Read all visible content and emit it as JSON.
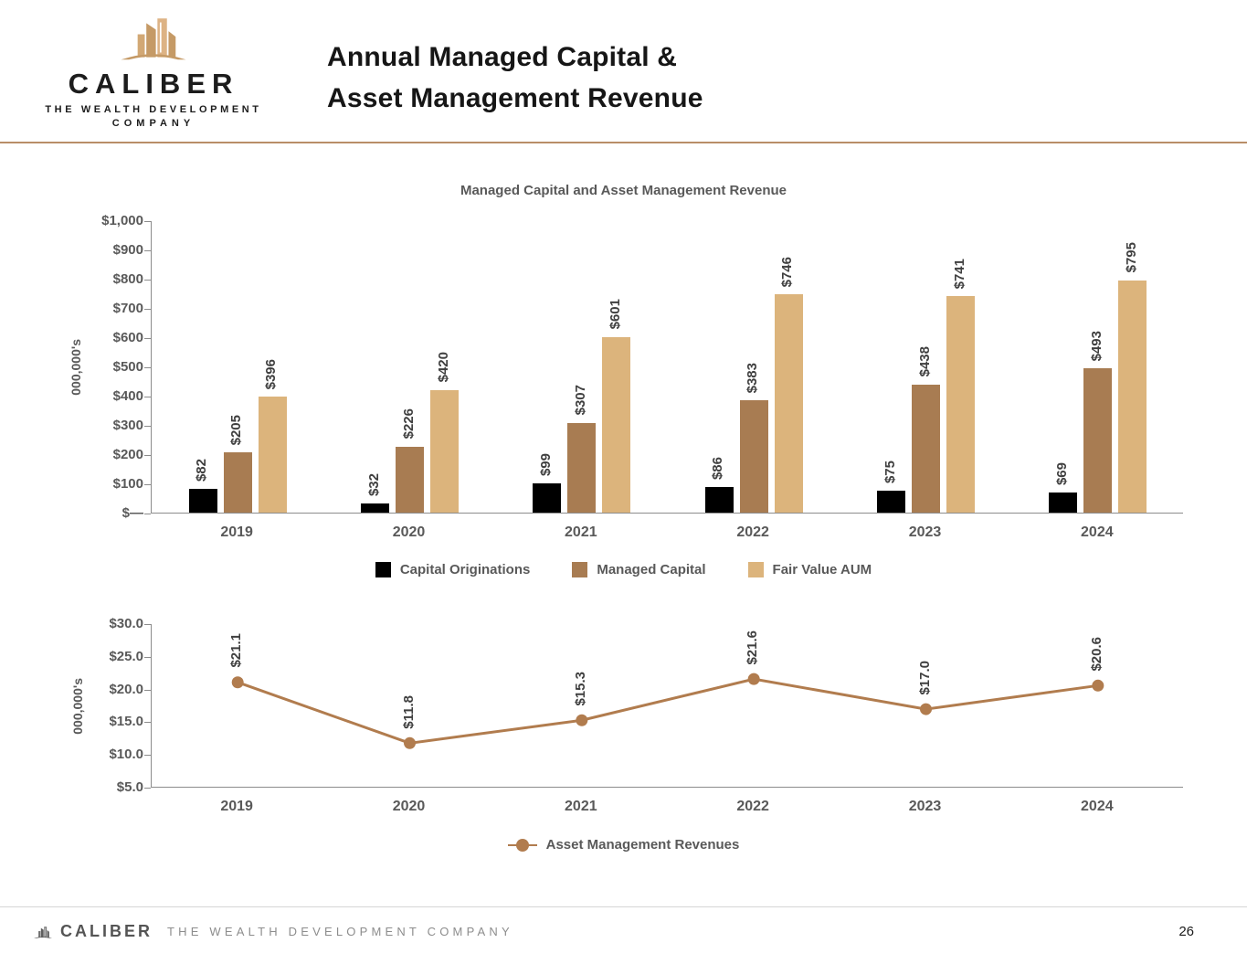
{
  "header": {
    "logo": {
      "brand": "CALIBER",
      "tagline_line1": "THE WEALTH DEVELOPMENT",
      "tagline_line2": "COMPANY"
    },
    "title_line1": "Annual Managed Capital &",
    "title_line2": "Asset Management Revenue"
  },
  "colors": {
    "divider": "#b98e68",
    "axis_gray": "#8c8c8c",
    "text_gray": "#595959",
    "value_label_gray": "#3f3f3f"
  },
  "chart_data": [
    {
      "type": "bar",
      "title": "Managed Capital and Asset Management Revenue",
      "ylabel": "000,000's",
      "categories": [
        "2019",
        "2020",
        "2021",
        "2022",
        "2023",
        "2024"
      ],
      "series": [
        {
          "name": "Capital Originations",
          "color": "#000000",
          "values": [
            82,
            32,
            99,
            86,
            75,
            69
          ],
          "labels": [
            "$82",
            "$32",
            "$99",
            "$86",
            "$75",
            "$69"
          ]
        },
        {
          "name": "Managed Capital",
          "color": "#a87c52",
          "values": [
            205,
            226,
            307,
            383,
            438,
            493
          ],
          "labels": [
            "$205",
            "$226",
            "$307",
            "$383",
            "$438",
            "$493"
          ]
        },
        {
          "name": "Fair Value AUM",
          "color": "#dcb47c",
          "values": [
            396,
            420,
            601,
            746,
            741,
            795
          ],
          "labels": [
            "$396",
            "$420",
            "$601",
            "$746",
            "$741",
            "$795"
          ]
        }
      ],
      "ylim": [
        0,
        1000
      ],
      "ytick_labels_top_down": [
        "$1,000",
        "$900",
        "$800",
        "$700",
        "$600",
        "$500",
        "$400",
        "$300",
        "$200",
        "$100",
        "$—"
      ],
      "grid": false,
      "legend_position": "bottom"
    },
    {
      "type": "line",
      "series_name": "Asset Management Revenues",
      "color": "#b17c4e",
      "ylabel": "000,000's",
      "categories": [
        "2019",
        "2020",
        "2021",
        "2022",
        "2023",
        "2024"
      ],
      "values": [
        21.1,
        11.8,
        15.3,
        21.6,
        17.0,
        20.6
      ],
      "labels": [
        "$21.1",
        "$11.8",
        "$15.3",
        "$21.6",
        "$17.0",
        "$20.6"
      ],
      "ylim": [
        5,
        30
      ],
      "ytick_labels_top_down": [
        "$30.0",
        "$25.0",
        "$20.0",
        "$15.0",
        "$10.0",
        "$5.0"
      ],
      "grid": false,
      "legend_position": "bottom"
    }
  ],
  "footer": {
    "brand": "CALIBER",
    "tagline": "THE WEALTH DEVELOPMENT COMPANY",
    "page_number": "26"
  }
}
